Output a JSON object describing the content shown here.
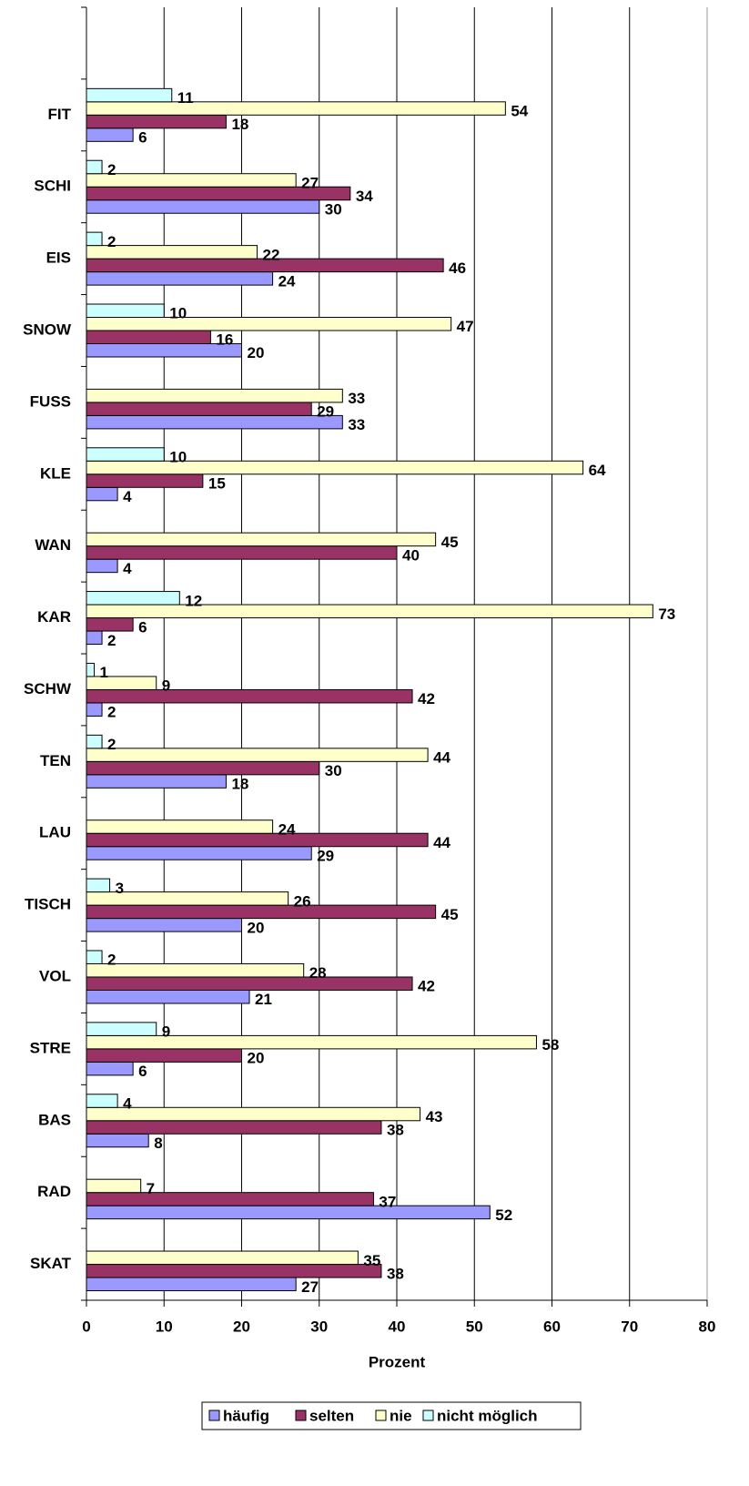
{
  "chart_data": {
    "type": "barh",
    "xlabel": "Prozent",
    "categories": [
      null,
      "FIT",
      "SCHI",
      "EIS",
      "SNOW",
      "FUSS",
      "KLE",
      "WAN",
      "KAR",
      "SCHW",
      "TEN",
      "LAU",
      "TISCH",
      "VOL",
      "STRE",
      "BAS",
      "RAD",
      "SKAT"
    ],
    "series": [
      {
        "name": "häufig",
        "color": "#9999ff",
        "values": [
          null,
          6,
          30,
          24,
          20,
          33,
          4,
          4,
          2,
          2,
          18,
          29,
          20,
          21,
          6,
          8,
          52,
          27
        ]
      },
      {
        "name": "selten",
        "color": "#993366",
        "values": [
          null,
          18,
          34,
          46,
          16,
          29,
          15,
          40,
          6,
          42,
          30,
          44,
          45,
          42,
          20,
          38,
          37,
          38
        ]
      },
      {
        "name": "nie",
        "color": "#ffffcc",
        "values": [
          null,
          54,
          27,
          22,
          47,
          33,
          64,
          45,
          73,
          9,
          44,
          24,
          26,
          28,
          58,
          43,
          7,
          35
        ]
      },
      {
        "name": "nicht möglich",
        "color": "#ccffff",
        "values": [
          null,
          11,
          2,
          2,
          10,
          null,
          10,
          null,
          12,
          1,
          2,
          null,
          3,
          2,
          9,
          4,
          null,
          null
        ]
      }
    ],
    "xlim": [
      0,
      80
    ],
    "xticks": [
      0,
      10,
      20,
      30,
      40,
      50,
      60,
      70,
      80
    ],
    "grid": true,
    "legend": "bottom"
  }
}
